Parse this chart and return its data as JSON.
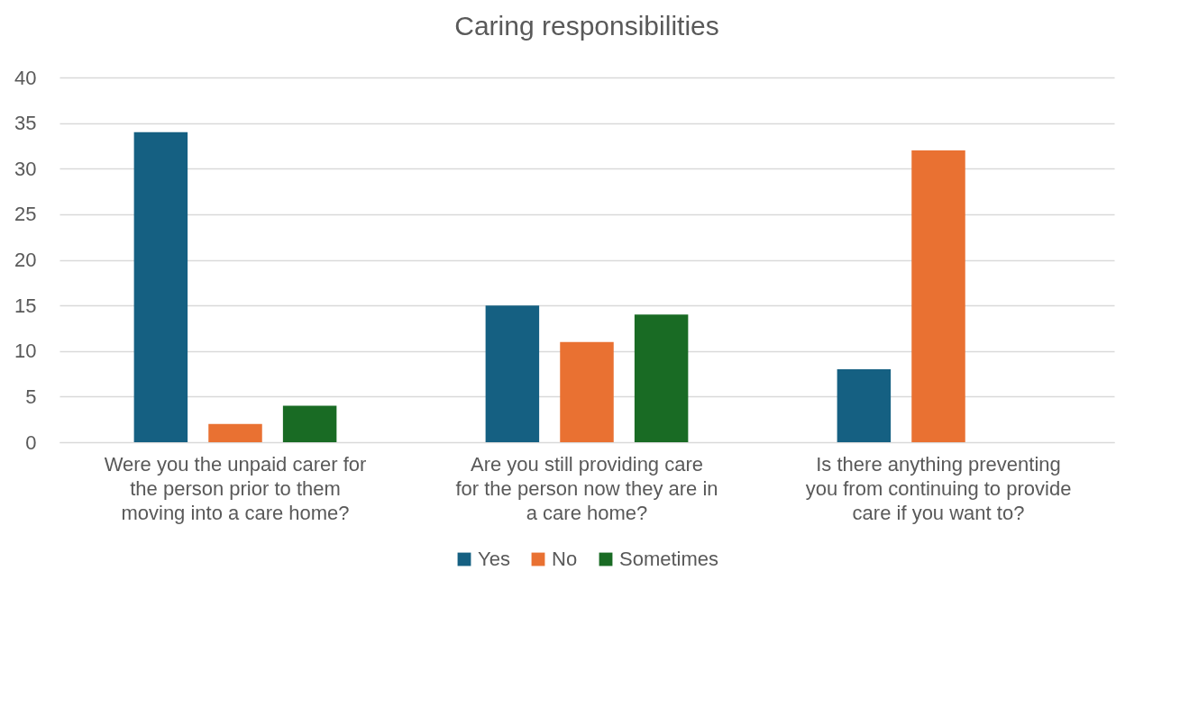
{
  "chart_data": {
    "type": "bar",
    "title": "Caring responsibilities",
    "categories": [
      "Were you the unpaid carer for the person prior to them moving into a care home?",
      "Are you still providing care for the person now they are in a care home?",
      "Is there anything preventing you from continuing to provide care if you want to?"
    ],
    "series": [
      {
        "name": "Yes",
        "color": "#156082",
        "values": [
          34,
          15,
          8
        ]
      },
      {
        "name": "No",
        "color": "#e97132",
        "values": [
          2,
          11,
          32
        ]
      },
      {
        "name": "Sometimes",
        "color": "#196b24",
        "values": [
          4,
          14,
          null
        ]
      }
    ],
    "ylim": [
      0,
      40
    ],
    "yticks": [
      0,
      5,
      10,
      15,
      20,
      25,
      30,
      35,
      40
    ],
    "grid": "y",
    "legend": "bottom"
  }
}
